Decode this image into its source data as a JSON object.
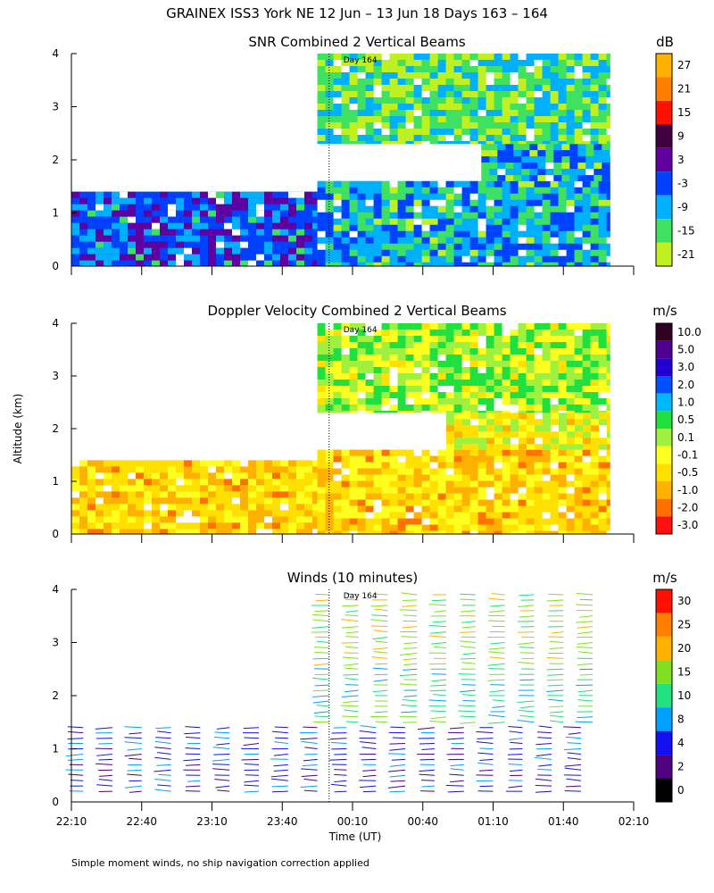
{
  "title": "GRAINEX ISS3 York NE  12 Jun – 13 Jun 18 Days 163 – 164",
  "ylabel": "Altitude (km)",
  "xlabel": "Time (UT)",
  "x_ticks": [
    "22:10",
    "22:40",
    "23:10",
    "23:40",
    "00:10",
    "00:40",
    "01:10",
    "01:40",
    "02:10"
  ],
  "day_marker": {
    "label": "Day 164",
    "time": "00:00"
  },
  "footnote": "Simple moment winds, no ship navigation correction applied",
  "chart_data": [
    {
      "type": "heatmap",
      "title": "SNR Combined 2 Vertical Beams",
      "xlabel": "Time (UT)",
      "ylabel": "Altitude (km)",
      "xlim": [
        "22:10",
        "02:10"
      ],
      "ylim": [
        0,
        4
      ],
      "y_ticks": [
        "0",
        "1",
        "2",
        "3",
        "4"
      ],
      "colorbar": {
        "unit": "dB",
        "labels": [
          "27",
          "21",
          "15",
          "9",
          "3",
          "-3",
          "-9",
          "-15",
          "-21"
        ],
        "colors": [
          "#FFB000",
          "#FF8000",
          "#FF1000",
          "#400040",
          "#6000A0",
          "#0040FF",
          "#00B0FF",
          "#40E060",
          "#C0F020"
        ]
      },
      "regions": [
        {
          "t0": "22:10",
          "t1": "23:55",
          "z0": 0.0,
          "z1": 1.4,
          "snr_db": -5
        },
        {
          "t0": "23:55",
          "t1": "02:00",
          "z0": 0.0,
          "z1": 1.6,
          "snr_db": -9
        },
        {
          "t0": "01:05",
          "t1": "02:00",
          "z0": 1.6,
          "z1": 2.3,
          "snr_db": -12
        },
        {
          "t0": "23:55",
          "t1": "02:00",
          "z0": 2.3,
          "z1": 4.0,
          "snr_db": -18
        }
      ]
    },
    {
      "type": "heatmap",
      "title": "Doppler Velocity Combined 2 Vertical Beams",
      "xlabel": "Time (UT)",
      "ylabel": "Altitude (km)",
      "xlim": [
        "22:10",
        "02:10"
      ],
      "ylim": [
        0,
        4
      ],
      "y_ticks": [
        "0",
        "1",
        "2",
        "3",
        "4"
      ],
      "colorbar": {
        "unit": "m/s",
        "labels": [
          "10.0",
          "5.0",
          "3.0",
          "2.0",
          "1.0",
          "0.5",
          "0.1",
          "-0.1",
          "-0.5",
          "-1.0",
          "-2.0",
          "-3.0"
        ],
        "colors": [
          "#300020",
          "#500090",
          "#2000D0",
          "#0050FF",
          "#00B8FF",
          "#20E040",
          "#A0F040",
          "#FFFF20",
          "#FFE000",
          "#FFB000",
          "#FF7000",
          "#FF1010"
        ]
      },
      "regions": [
        {
          "t0": "22:10",
          "t1": "23:55",
          "z0": 0.0,
          "z1": 1.4,
          "vel_ms": -0.5
        },
        {
          "t0": "23:55",
          "t1": "02:00",
          "z0": 0.0,
          "z1": 1.6,
          "vel_ms": -0.5
        },
        {
          "t0": "00:50",
          "t1": "02:00",
          "z0": 1.6,
          "z1": 2.3,
          "vel_ms": -0.3
        },
        {
          "t0": "23:55",
          "t1": "02:00",
          "z0": 2.3,
          "z1": 4.0,
          "vel_ms": 0.0
        }
      ]
    },
    {
      "type": "scatter",
      "title": "Winds (10 minutes)",
      "xlabel": "Time (UT)",
      "ylabel": "Altitude (km)",
      "xlim": [
        "22:10",
        "02:10"
      ],
      "ylim": [
        0,
        4
      ],
      "y_ticks": [
        "0",
        "1",
        "2",
        "3",
        "4"
      ],
      "colorbar": {
        "unit": "m/s",
        "labels": [
          "30",
          "25",
          "20",
          "15",
          "10",
          "8",
          "4",
          "2",
          "0"
        ],
        "colors": [
          "#FF1000",
          "#FF8000",
          "#FFB000",
          "#80E020",
          "#20E080",
          "#00A0FF",
          "#1010F0",
          "#500080",
          "#000000"
        ]
      },
      "layers": [
        {
          "t0": "22:10",
          "t1": "02:00",
          "z0": 0.2,
          "z1": 1.5,
          "speed_ms": 5
        },
        {
          "t0": "23:55",
          "t1": "02:00",
          "z0": 1.5,
          "z1": 2.6,
          "speed_ms": 11
        },
        {
          "t0": "23:55",
          "t1": "02:00",
          "z0": 2.6,
          "z1": 4.0,
          "speed_ms": 16
        }
      ]
    }
  ]
}
